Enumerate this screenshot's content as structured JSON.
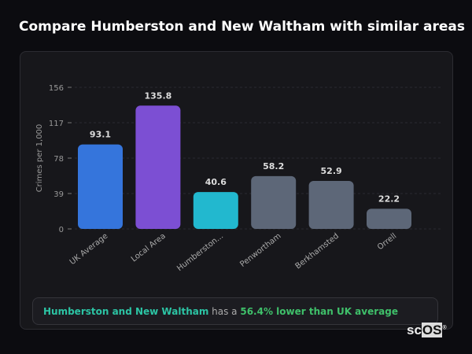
{
  "title": "Compare Humberston and New Waltham with similar areas",
  "chart_data": {
    "type": "bar",
    "ylabel": "Crimes per 1,000",
    "ylim": [
      0,
      156
    ],
    "yticks": [
      0,
      39,
      78,
      117,
      156
    ],
    "grid": true,
    "categories": [
      "UK Average",
      "Local Area",
      "Humberston...",
      "Penwortham",
      "Berkhamsted",
      "Orrell"
    ],
    "values": [
      93.1,
      135.8,
      40.6,
      58.2,
      52.9,
      22.2
    ],
    "value_labels": [
      "93.1",
      "135.8",
      "40.6",
      "58.2",
      "52.9",
      "22.2"
    ],
    "colors": [
      "#3575dc",
      "#7c4fd3",
      "#22b8cf",
      "#5d6778",
      "#5d6778",
      "#5d6778"
    ]
  },
  "info": {
    "area": "Humberston and New Waltham",
    "mid": " has a ",
    "stat": "56.4% lower than UK average"
  },
  "logo": {
    "pre": "sc",
    "box": "OS",
    "mark": "®"
  }
}
